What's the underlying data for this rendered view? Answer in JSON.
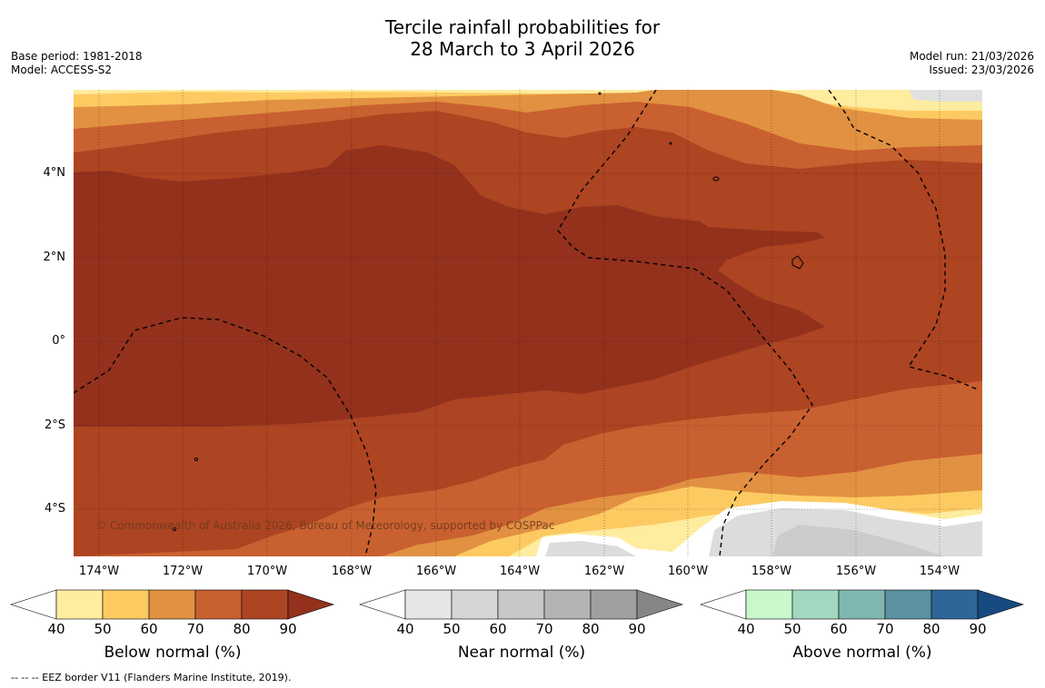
{
  "title": {
    "line1": "Tercile rainfall probabilities for",
    "line2": "28 March to 3 April 2026"
  },
  "meta_left": {
    "base_period": "Base period: 1981-2018",
    "model": "Model: ACCESS-S2"
  },
  "meta_right": {
    "model_run": "Model run: 21/03/2026",
    "issued": "Issued: 23/03/2026"
  },
  "map": {
    "lat_labels": [
      "4°N",
      "2°N",
      "0°",
      "2°S",
      "4°S"
    ],
    "lon_labels": [
      "174°W",
      "172°W",
      "170°W",
      "168°W",
      "166°W",
      "164°W",
      "162°W",
      "160°W",
      "158°W",
      "156°W",
      "154°W"
    ],
    "copyright": "© Commonwealth of Australia 2026, Bureau of Meteorology, supported by COSPPac"
  },
  "colorbars": [
    {
      "label": "Below normal (%)",
      "ticks": [
        "40",
        "50",
        "60",
        "70",
        "80",
        "90"
      ],
      "colors": [
        "#ffffff",
        "#feec9f",
        "#fdca62",
        "#e19141",
        "#c96030",
        "#ad4422",
        "#93311d"
      ]
    },
    {
      "label": "Near normal (%)",
      "ticks": [
        "40",
        "50",
        "60",
        "70",
        "80",
        "90"
      ],
      "colors": [
        "#ffffff",
        "#e6e6e6",
        "#d6d6d6",
        "#c8c8c8",
        "#b4b4b4",
        "#a0a0a0",
        "#868686"
      ]
    },
    {
      "label": "Above normal (%)",
      "ticks": [
        "40",
        "50",
        "60",
        "70",
        "80",
        "90"
      ],
      "colors": [
        "#ffffff",
        "#c8f8cc",
        "#a2d8bf",
        "#80b6b2",
        "#5c92a2",
        "#2f6698",
        "#174a80"
      ]
    }
  ],
  "footnote": "-- -- -- EEZ border V11 (Flanders Marine Institute, 2019)."
}
